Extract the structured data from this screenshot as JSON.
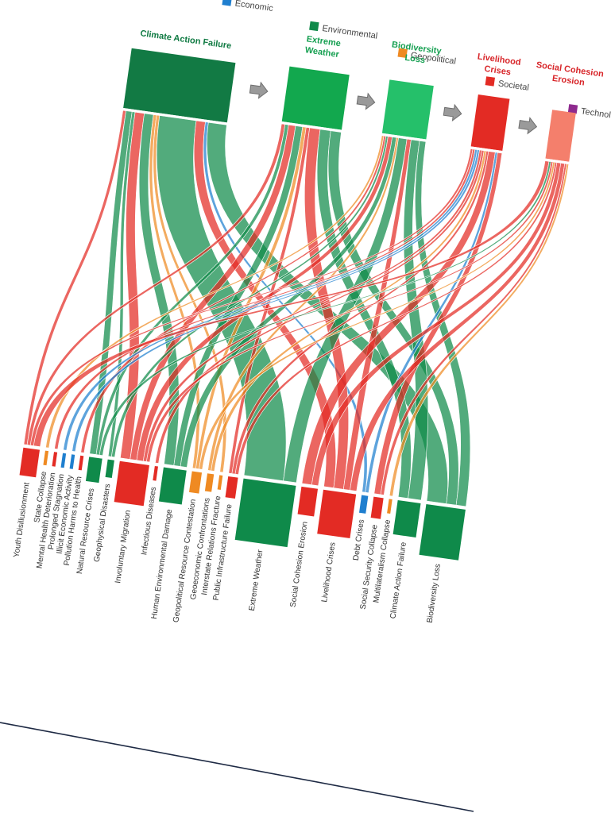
{
  "legend": [
    {
      "label": "Economic",
      "color": "#1f7fcf"
    },
    {
      "label": "Environmental",
      "color": "#0f8a4a"
    },
    {
      "label": "Geopolitical",
      "color": "#ef8a22"
    },
    {
      "label": "Societal",
      "color": "#e32b24"
    },
    {
      "label": "Technological",
      "color": "#8e2a8e"
    }
  ],
  "chart_data": {
    "type": "sankey",
    "categories": [
      "Economic",
      "Environmental",
      "Geopolitical",
      "Societal",
      "Technological"
    ],
    "sources": [
      {
        "name": "Climate Action Failure",
        "category": "Environmental",
        "color": "#127a44"
      },
      {
        "name": "Extreme Weather",
        "category": "Environmental",
        "color": "#12a84e"
      },
      {
        "name": "Biodiversity Loss",
        "category": "Environmental",
        "color": "#25c06a"
      },
      {
        "name": "Livelihood Crises",
        "category": "Societal",
        "color": "#e32b24"
      },
      {
        "name": "Social Cohesion Erosion",
        "category": "Societal",
        "color": "#f47f6c"
      }
    ],
    "targets": [
      {
        "name": "Youth Disillusionment",
        "category": "Societal",
        "value": 5
      },
      {
        "name": "State Collapse",
        "category": "Geopolitical",
        "value": 1
      },
      {
        "name": "Mental Health Deterioration",
        "category": "Societal",
        "value": 1
      },
      {
        "name": "Prolonged Stagnation",
        "category": "Economic",
        "value": 1
      },
      {
        "name": "Illicit Economic Activity",
        "category": "Economic",
        "value": 1
      },
      {
        "name": "Pollution Harms to Health",
        "category": "Societal",
        "value": 1
      },
      {
        "name": "Natural Resource Crises",
        "category": "Environmental",
        "value": 4
      },
      {
        "name": "Geophysical Disasters",
        "category": "Environmental",
        "value": 2
      },
      {
        "name": "Involuntary Migration",
        "category": "Societal",
        "value": 9
      },
      {
        "name": "Infectious Diseases",
        "category": "Societal",
        "value": 1
      },
      {
        "name": "Human Environmental Damage",
        "category": "Environmental",
        "value": 7
      },
      {
        "name": "Geopolitical Resource Contestation",
        "category": "Geopolitical",
        "value": 3
      },
      {
        "name": "Geoeconomic Confrontations",
        "category": "Geopolitical",
        "value": 2
      },
      {
        "name": "Interstate Relations Fracture",
        "category": "Geopolitical",
        "value": 1
      },
      {
        "name": "Public Infrastructure Failure",
        "category": "Societal",
        "value": 3
      },
      {
        "name": "Extreme Weather",
        "category": "Environmental",
        "value": 16
      },
      {
        "name": "Social Cohesion Erosion",
        "category": "Societal",
        "value": 5
      },
      {
        "name": "Livelihood Crises",
        "category": "Societal",
        "value": 10
      },
      {
        "name": "Debt Crises",
        "category": "Economic",
        "value": 2
      },
      {
        "name": "Social Security Collapse",
        "category": "Societal",
        "value": 3
      },
      {
        "name": "Multilateralism Collapse",
        "category": "Geopolitical",
        "value": 1
      },
      {
        "name": "Climate Action Failure",
        "category": "Environmental",
        "value": 7
      },
      {
        "name": "Biodiversity Loss",
        "category": "Environmental",
        "value": 12
      }
    ],
    "links": [
      {
        "source": 0,
        "target": 0,
        "value": 1
      },
      {
        "source": 0,
        "target": 6,
        "value": 2
      },
      {
        "source": 0,
        "target": 7,
        "value": 1
      },
      {
        "source": 0,
        "target": 8,
        "value": 3
      },
      {
        "source": 0,
        "target": 10,
        "value": 3
      },
      {
        "source": 0,
        "target": 11,
        "value": 1
      },
      {
        "source": 0,
        "target": 13,
        "value": 1
      },
      {
        "source": 0,
        "target": 15,
        "value": 12
      },
      {
        "source": 0,
        "target": 17,
        "value": 3
      },
      {
        "source": 0,
        "target": 18,
        "value": 1
      },
      {
        "source": 0,
        "target": 22,
        "value": 6
      },
      {
        "source": 1,
        "target": 0,
        "value": 1
      },
      {
        "source": 1,
        "target": 6,
        "value": 1
      },
      {
        "source": 1,
        "target": 8,
        "value": 2
      },
      {
        "source": 1,
        "target": 10,
        "value": 2
      },
      {
        "source": 1,
        "target": 11,
        "value": 1
      },
      {
        "source": 1,
        "target": 14,
        "value": 1
      },
      {
        "source": 1,
        "target": 17,
        "value": 3
      },
      {
        "source": 1,
        "target": 21,
        "value": 3
      },
      {
        "source": 1,
        "target": 22,
        "value": 3
      },
      {
        "source": 2,
        "target": 1,
        "value": 1
      },
      {
        "source": 2,
        "target": 5,
        "value": 1
      },
      {
        "source": 2,
        "target": 7,
        "value": 1
      },
      {
        "source": 2,
        "target": 8,
        "value": 2
      },
      {
        "source": 2,
        "target": 10,
        "value": 2
      },
      {
        "source": 2,
        "target": 12,
        "value": 1
      },
      {
        "source": 2,
        "target": 15,
        "value": 4
      },
      {
        "source": 2,
        "target": 17,
        "value": 2
      },
      {
        "source": 2,
        "target": 21,
        "value": 4
      },
      {
        "source": 2,
        "target": 22,
        "value": 3
      },
      {
        "source": 3,
        "target": 0,
        "value": 1
      },
      {
        "source": 3,
        "target": 2,
        "value": 1
      },
      {
        "source": 3,
        "target": 3,
        "value": 1
      },
      {
        "source": 3,
        "target": 4,
        "value": 1
      },
      {
        "source": 3,
        "target": 8,
        "value": 1
      },
      {
        "source": 3,
        "target": 9,
        "value": 1
      },
      {
        "source": 3,
        "target": 12,
        "value": 1
      },
      {
        "source": 3,
        "target": 14,
        "value": 1
      },
      {
        "source": 3,
        "target": 16,
        "value": 3
      },
      {
        "source": 3,
        "target": 18,
        "value": 1
      },
      {
        "source": 3,
        "target": 19,
        "value": 2
      },
      {
        "source": 4,
        "target": 0,
        "value": 2
      },
      {
        "source": 4,
        "target": 6,
        "value": 1
      },
      {
        "source": 4,
        "target": 8,
        "value": 1
      },
      {
        "source": 4,
        "target": 11,
        "value": 1
      },
      {
        "source": 4,
        "target": 14,
        "value": 1
      },
      {
        "source": 4,
        "target": 16,
        "value": 2
      },
      {
        "source": 4,
        "target": 17,
        "value": 2
      },
      {
        "source": 4,
        "target": 19,
        "value": 1
      },
      {
        "source": 4,
        "target": 20,
        "value": 1
      }
    ]
  }
}
